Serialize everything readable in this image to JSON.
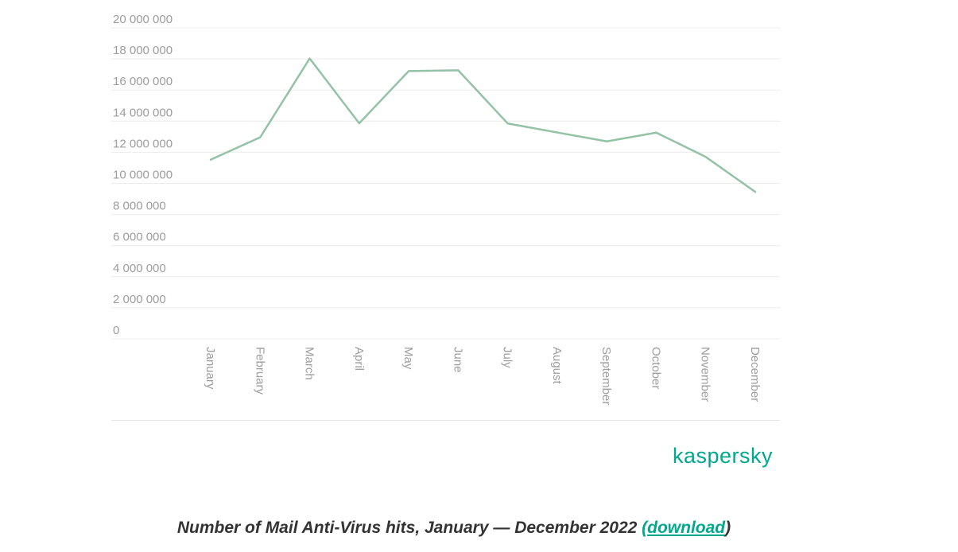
{
  "chart_data": {
    "type": "line",
    "title": "Number of Mail Anti-Virus hits, January — December 2022",
    "categories": [
      "January",
      "February",
      "March",
      "April",
      "May",
      "June",
      "July",
      "August",
      "September",
      "October",
      "November",
      "December"
    ],
    "series": [
      {
        "name": "Mail Anti-Virus hits",
        "values": [
          11520000,
          12960000,
          18030000,
          13860000,
          17220000,
          17270000,
          13850000,
          13270000,
          12700000,
          13260000,
          11700000,
          9450000
        ]
      }
    ],
    "xlabel": "",
    "ylabel": "",
    "ylim": [
      0,
      20000000
    ],
    "y_tick_step": 2000000,
    "y_tick_labels": [
      "0",
      "2 000 000",
      "4 000 000",
      "6 000 000",
      "8 000 000",
      "10 000 000",
      "12 000 000",
      "14 000 000",
      "16 000 000",
      "18 000 000",
      "20 000 000"
    ],
    "grid": true,
    "legend_position": "none",
    "line_color": "#94c2a6",
    "grid_color": "#ececec",
    "axis_line_color": "#e6e6e6",
    "tick_label_color": "#9d9d9d"
  },
  "branding": {
    "logo_text": "kaspersky",
    "logo_color": "#00A88E"
  },
  "caption": {
    "text": "Number of Mail Anti-Virus hits, January — December 2022 ",
    "open_paren": "(",
    "link_label": "download",
    "close_paren": ")",
    "link_color": "#00a88e"
  }
}
